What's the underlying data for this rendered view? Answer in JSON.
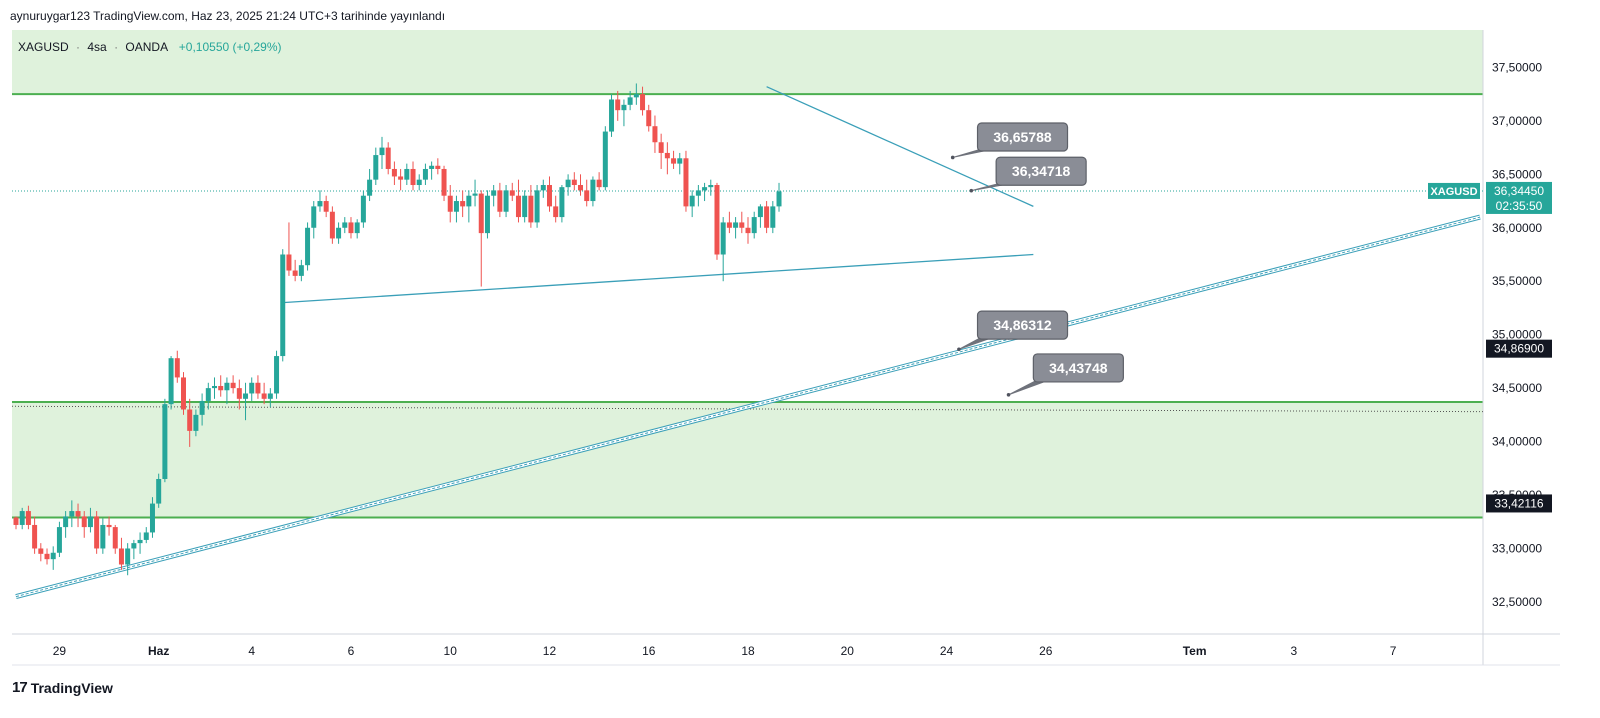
{
  "header": {
    "publish_line": "aynuruygar123 TradingView.com, Haz 23, 2025 21:24 UTC+3 tarihinde yayınlandı"
  },
  "symbol_bar": {
    "symbol": "XAGUSD",
    "interval": "4sa",
    "exchange": "OANDA",
    "change": "+0,10550 (+0,29%)",
    "separator": "·"
  },
  "footer": {
    "brand": "TradingView",
    "logo_mark": "17"
  },
  "colors": {
    "up": "#26a69a",
    "down": "#ef5350",
    "zone_fill": "#dff2dc",
    "zone_line": "#4caf50",
    "trend_line": "#3a9fb8",
    "label_bg": "#8a8d96",
    "price_badge": "#26a69a"
  },
  "chart_data": {
    "type": "candlestick",
    "symbol": "XAGUSD",
    "ylim": [
      32.2,
      37.85
    ],
    "y_ticks": [
      "37,50000",
      "37,00000",
      "36,50000",
      "36,00000",
      "35,50000",
      "35,00000",
      "34,50000",
      "34,00000",
      "33,50000",
      "33,00000",
      "32,50000"
    ],
    "y_tick_values": [
      37.5,
      37.0,
      36.5,
      36.0,
      35.5,
      35.0,
      34.5,
      34.0,
      33.5,
      33.0,
      32.5
    ],
    "x_ticks": [
      "29",
      "Haz",
      "4",
      "6",
      "10",
      "12",
      "16",
      "18",
      "20",
      "24",
      "26",
      "Tem",
      "3",
      "7"
    ],
    "x_tick_index": [
      7,
      23,
      38,
      54,
      70,
      86,
      102,
      118,
      134,
      150,
      166,
      190,
      206,
      222
    ],
    "x_index_max": 236,
    "candles": [
      [
        33.29,
        33.3,
        33.18,
        33.22
      ],
      [
        33.22,
        33.38,
        33.18,
        33.35
      ],
      [
        33.35,
        33.4,
        33.18,
        33.22
      ],
      [
        33.22,
        33.3,
        32.95,
        33.0
      ],
      [
        33.0,
        33.05,
        32.88,
        32.95
      ],
      [
        32.95,
        33.0,
        32.85,
        32.9
      ],
      [
        32.9,
        33.02,
        32.8,
        32.96
      ],
      [
        32.96,
        33.25,
        32.92,
        33.2
      ],
      [
        33.2,
        33.35,
        33.1,
        33.3
      ],
      [
        33.3,
        33.45,
        33.2,
        33.35
      ],
      [
        33.35,
        33.42,
        33.2,
        33.3
      ],
      [
        33.3,
        33.35,
        33.1,
        33.2
      ],
      [
        33.2,
        33.38,
        33.15,
        33.3
      ],
      [
        33.3,
        33.35,
        32.95,
        33.0
      ],
      [
        33.0,
        33.28,
        32.95,
        33.22
      ],
      [
        33.22,
        33.3,
        33.12,
        33.2
      ],
      [
        33.2,
        33.22,
        32.95,
        33.0
      ],
      [
        33.0,
        33.1,
        32.8,
        32.85
      ],
      [
        32.85,
        33.05,
        32.75,
        33.0
      ],
      [
        33.0,
        33.08,
        32.9,
        33.05
      ],
      [
        33.05,
        33.15,
        32.95,
        33.08
      ],
      [
        33.08,
        33.2,
        33.05,
        33.15
      ],
      [
        33.15,
        33.48,
        33.1,
        33.42
      ],
      [
        33.42,
        33.7,
        33.38,
        33.65
      ],
      [
        33.65,
        34.4,
        33.62,
        34.35
      ],
      [
        34.35,
        34.8,
        34.3,
        34.78
      ],
      [
        34.78,
        34.85,
        34.55,
        34.6
      ],
      [
        34.6,
        34.65,
        34.25,
        34.3
      ],
      [
        34.3,
        34.4,
        33.95,
        34.1
      ],
      [
        34.1,
        34.3,
        34.05,
        34.25
      ],
      [
        34.25,
        34.45,
        34.15,
        34.38
      ],
      [
        34.38,
        34.55,
        34.3,
        34.5
      ],
      [
        34.5,
        34.6,
        34.4,
        34.52
      ],
      [
        34.52,
        34.62,
        34.42,
        34.48
      ],
      [
        34.48,
        34.6,
        34.35,
        34.55
      ],
      [
        34.55,
        34.62,
        34.45,
        34.5
      ],
      [
        34.5,
        34.58,
        34.3,
        34.4
      ],
      [
        34.4,
        34.55,
        34.2,
        34.45
      ],
      [
        34.45,
        34.6,
        34.38,
        34.55
      ],
      [
        34.55,
        34.62,
        34.4,
        34.45
      ],
      [
        34.45,
        34.55,
        34.35,
        34.4
      ],
      [
        34.4,
        34.5,
        34.32,
        34.45
      ],
      [
        34.45,
        34.85,
        34.4,
        34.8
      ],
      [
        34.8,
        35.8,
        34.75,
        35.75
      ],
      [
        35.75,
        36.05,
        35.55,
        35.6
      ],
      [
        35.6,
        35.7,
        35.5,
        35.55
      ],
      [
        35.55,
        35.7,
        35.5,
        35.65
      ],
      [
        35.65,
        36.05,
        35.6,
        36.0
      ],
      [
        36.0,
        36.25,
        35.9,
        36.2
      ],
      [
        36.2,
        36.35,
        36.15,
        36.25
      ],
      [
        36.25,
        36.3,
        36.1,
        36.15
      ],
      [
        36.15,
        36.2,
        35.85,
        35.9
      ],
      [
        35.9,
        36.05,
        35.85,
        36.0
      ],
      [
        36.0,
        36.1,
        35.95,
        36.05
      ],
      [
        36.05,
        36.1,
        35.9,
        35.95
      ],
      [
        35.95,
        36.08,
        35.9,
        36.05
      ],
      [
        36.05,
        36.35,
        36.0,
        36.3
      ],
      [
        36.3,
        36.55,
        36.25,
        36.45
      ],
      [
        36.45,
        36.75,
        36.4,
        36.68
      ],
      [
        36.68,
        36.85,
        36.55,
        36.75
      ],
      [
        36.75,
        36.8,
        36.5,
        36.55
      ],
      [
        36.55,
        36.62,
        36.4,
        36.48
      ],
      [
        36.48,
        36.55,
        36.35,
        36.45
      ],
      [
        36.45,
        36.6,
        36.4,
        36.55
      ],
      [
        36.55,
        36.62,
        36.35,
        36.4
      ],
      [
        36.4,
        36.5,
        36.35,
        36.45
      ],
      [
        36.45,
        36.6,
        36.4,
        36.55
      ],
      [
        36.55,
        36.62,
        36.45,
        36.58
      ],
      [
        36.58,
        36.65,
        36.5,
        36.55
      ],
      [
        36.55,
        36.58,
        36.25,
        36.3
      ],
      [
        36.3,
        36.4,
        36.05,
        36.15
      ],
      [
        36.15,
        36.3,
        36.05,
        36.25
      ],
      [
        36.25,
        36.35,
        36.1,
        36.2
      ],
      [
        36.2,
        36.35,
        36.05,
        36.3
      ],
      [
        36.3,
        36.45,
        36.2,
        36.32
      ],
      [
        36.32,
        36.35,
        35.45,
        35.95
      ],
      [
        35.95,
        36.35,
        35.9,
        36.3
      ],
      [
        36.3,
        36.4,
        36.2,
        36.35
      ],
      [
        36.35,
        36.42,
        36.1,
        36.15
      ],
      [
        36.15,
        36.4,
        36.1,
        36.35
      ],
      [
        36.35,
        36.42,
        36.25,
        36.3
      ],
      [
        36.3,
        36.45,
        36.05,
        36.1
      ],
      [
        36.1,
        36.35,
        36.05,
        36.3
      ],
      [
        36.3,
        36.4,
        36.0,
        36.05
      ],
      [
        36.05,
        36.4,
        36.0,
        36.35
      ],
      [
        36.35,
        36.45,
        36.28,
        36.4
      ],
      [
        36.4,
        36.48,
        36.15,
        36.2
      ],
      [
        36.2,
        36.3,
        36.05,
        36.1
      ],
      [
        36.1,
        36.4,
        36.05,
        36.38
      ],
      [
        36.38,
        36.5,
        36.3,
        36.45
      ],
      [
        36.45,
        36.52,
        36.35,
        36.4
      ],
      [
        36.4,
        36.5,
        36.3,
        36.35
      ],
      [
        36.35,
        36.45,
        36.2,
        36.25
      ],
      [
        36.25,
        36.48,
        36.2,
        36.45
      ],
      [
        36.45,
        36.52,
        36.35,
        36.38
      ],
      [
        36.38,
        36.95,
        36.35,
        36.9
      ],
      [
        36.9,
        37.25,
        36.85,
        37.2
      ],
      [
        37.2,
        37.28,
        37.0,
        37.1
      ],
      [
        37.1,
        37.2,
        36.95,
        37.15
      ],
      [
        37.15,
        37.28,
        37.1,
        37.22
      ],
      [
        37.22,
        37.35,
        37.15,
        37.25
      ],
      [
        37.25,
        37.32,
        37.05,
        37.1
      ],
      [
        37.1,
        37.15,
        36.9,
        36.95
      ],
      [
        36.95,
        37.05,
        36.7,
        36.8
      ],
      [
        36.8,
        36.88,
        36.55,
        36.7
      ],
      [
        36.7,
        36.8,
        36.5,
        36.65
      ],
      [
        36.65,
        36.72,
        36.55,
        36.6
      ],
      [
        36.6,
        36.7,
        36.5,
        36.65
      ],
      [
        36.65,
        36.72,
        36.15,
        36.2
      ],
      [
        36.2,
        36.35,
        36.1,
        36.3
      ],
      [
        36.3,
        36.4,
        36.2,
        36.35
      ],
      [
        36.35,
        36.42,
        36.25,
        36.38
      ],
      [
        36.38,
        36.45,
        36.3,
        36.4
      ],
      [
        36.4,
        36.42,
        35.7,
        35.75
      ],
      [
        35.75,
        36.1,
        35.5,
        36.05
      ],
      [
        36.05,
        36.15,
        35.95,
        36.0
      ],
      [
        36.0,
        36.1,
        35.9,
        36.05
      ],
      [
        36.05,
        36.15,
        35.95,
        36.0
      ],
      [
        36.0,
        36.1,
        35.85,
        35.95
      ],
      [
        35.95,
        36.15,
        35.9,
        36.1
      ],
      [
        36.1,
        36.22,
        36.0,
        36.2
      ],
      [
        36.2,
        36.25,
        35.95,
        36.0
      ],
      [
        36.0,
        36.25,
        35.95,
        36.2
      ],
      [
        36.2,
        36.42,
        36.15,
        36.34
      ]
    ],
    "price_zones": [
      {
        "top": 37.85,
        "bottom": 37.25
      },
      {
        "top": 34.37,
        "bottom": 33.29
      }
    ],
    "trend_lines": [
      {
        "from": [
          43,
          35.3
        ],
        "to": [
          164,
          35.75
        ],
        "style": "single"
      },
      {
        "from": [
          121,
          37.32
        ],
        "to": [
          164,
          36.2
        ],
        "style": "single"
      },
      {
        "from": [
          0,
          32.55
        ],
        "to": [
          236,
          36.1
        ],
        "style": "double"
      }
    ],
    "callouts": [
      {
        "label": "36,65788",
        "anchor": [
          151,
          36.65788
        ],
        "box": [
          155,
          36.98
        ]
      },
      {
        "label": "36,34718",
        "anchor": [
          154,
          36.34718
        ],
        "box": [
          158,
          36.66
        ]
      },
      {
        "label": "34,86312",
        "anchor": [
          152,
          34.86312
        ],
        "box": [
          155,
          35.22
        ]
      },
      {
        "label": "34,43748",
        "anchor": [
          160,
          34.43748
        ],
        "box": [
          164,
          34.82
        ]
      }
    ],
    "dotted_lines": [
      {
        "y": 36.3445,
        "color": "#26a69a"
      },
      {
        "y": 34.33,
        "color": "#555555",
        "slope_end": 34.28
      }
    ],
    "price_badges": [
      {
        "symbol": "XAGUSD",
        "price": "36,34450",
        "countdown": "02:35:50",
        "y": 36.3445,
        "bg": "#26a69a"
      },
      {
        "price": "34,86900",
        "y": 34.869,
        "bg": "#131722"
      },
      {
        "price": "33,42116",
        "y": 33.42116,
        "bg": "#131722"
      }
    ]
  }
}
